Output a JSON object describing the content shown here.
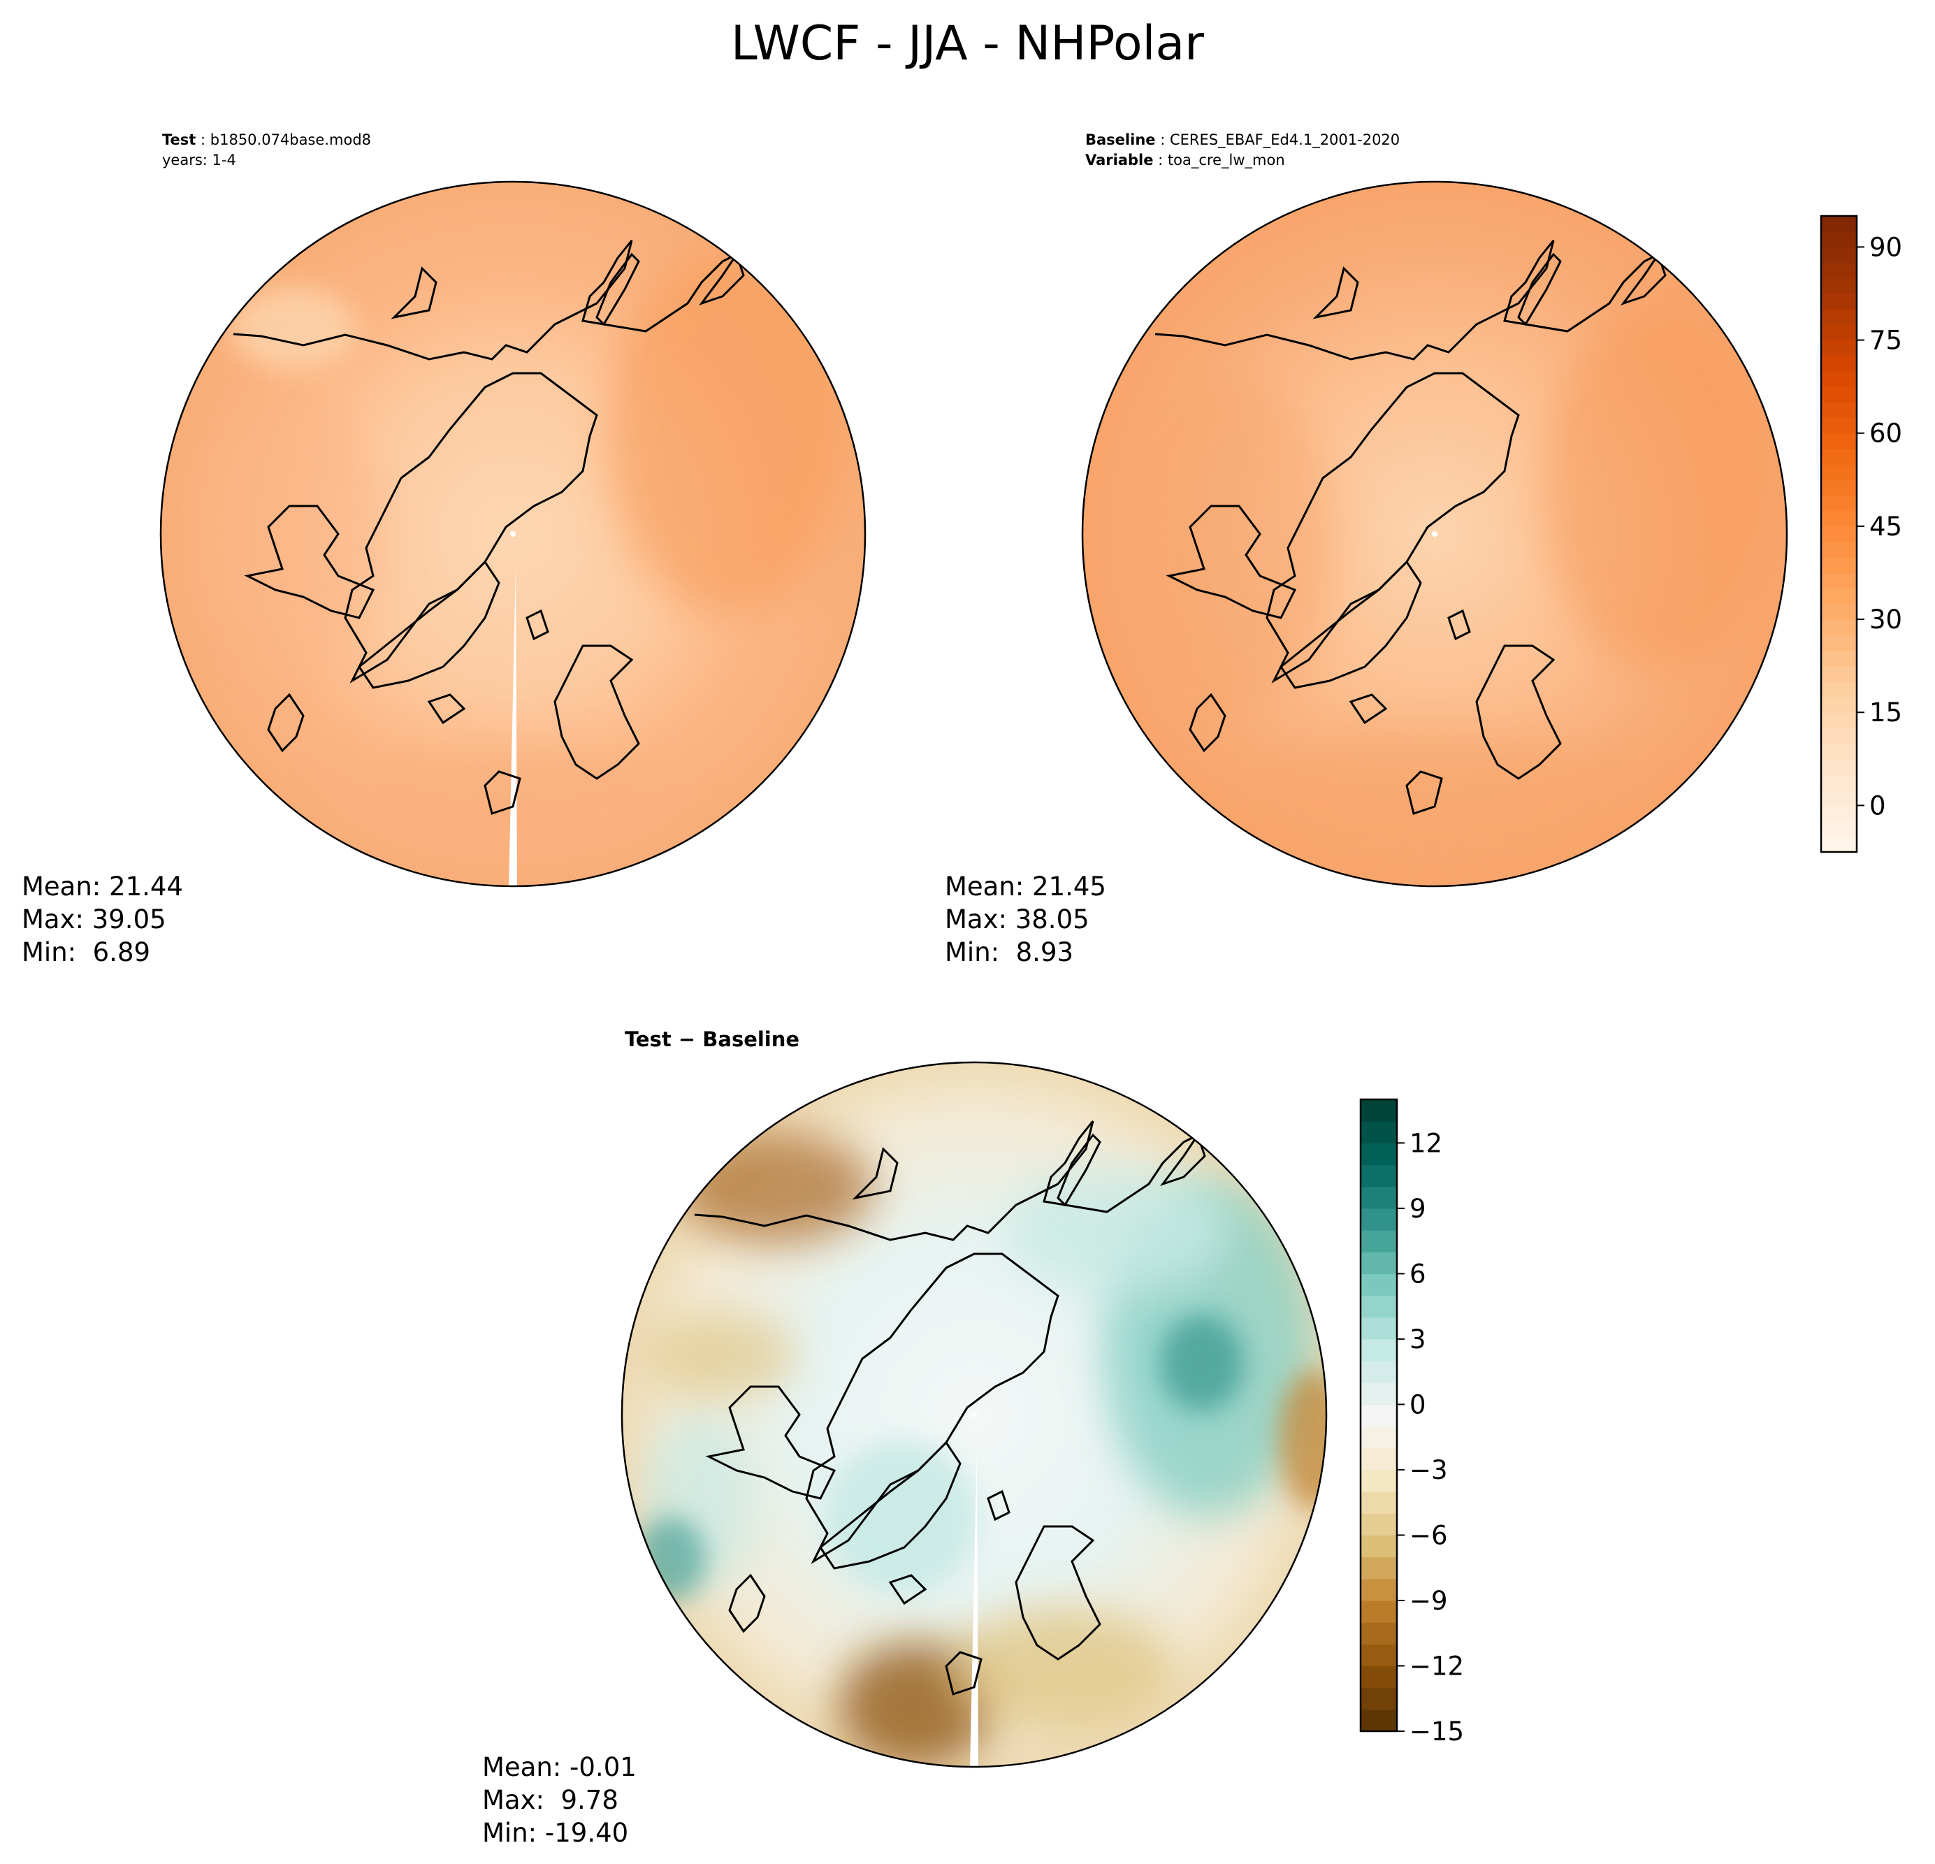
{
  "title": "LWCF - JJA - NHPolar",
  "panels": {
    "test": {
      "header_key_1": "Test",
      "header_val_1": "b1850.074base.mod8",
      "header_line_2": "years: 1-4",
      "stats_mean": "Mean: 21.44",
      "stats_max": "Max: 39.05",
      "stats_min": "Min:  6.89"
    },
    "baseline": {
      "header_key_1": "Baseline",
      "header_val_1": "CERES_EBAF_Ed4.1_2001-2020",
      "header_key_2": "Variable",
      "header_val_2": "toa_cre_lw_mon",
      "stats_mean": "Mean: 21.45",
      "stats_max": "Max: 38.05",
      "stats_min": "Min:  8.93"
    },
    "diff": {
      "title_left": "Test",
      "title_op": "−",
      "title_right": "Baseline",
      "stats_mean": "Mean: -0.01",
      "stats_max": "Max:  9.78",
      "stats_min": "Min: -19.40"
    }
  },
  "colorbars": {
    "top": {
      "colormap": "Oranges",
      "range": [
        -7.5,
        95
      ],
      "ticks": [
        {
          "v": 0,
          "label": "0"
        },
        {
          "v": 15,
          "label": "15"
        },
        {
          "v": 30,
          "label": "30"
        },
        {
          "v": 45,
          "label": "45"
        },
        {
          "v": 60,
          "label": "60"
        },
        {
          "v": 75,
          "label": "75"
        },
        {
          "v": 90,
          "label": "90"
        }
      ]
    },
    "diff": {
      "colormap": "BrBG",
      "range": [
        -15,
        14
      ],
      "ticks": [
        {
          "v": -15,
          "label": "−15"
        },
        {
          "v": -12,
          "label": "−12"
        },
        {
          "v": -9,
          "label": "−9"
        },
        {
          "v": -6,
          "label": "−6"
        },
        {
          "v": -3,
          "label": "−3"
        },
        {
          "v": 0,
          "label": "0"
        },
        {
          "v": 3,
          "label": "3"
        },
        {
          "v": 6,
          "label": "6"
        },
        {
          "v": 9,
          "label": "9"
        },
        {
          "v": 12,
          "label": "12"
        }
      ]
    }
  },
  "colors": {
    "oranges_low": "#fff5eb",
    "oranges_high": "#7f2704",
    "brbg_low": "#543005",
    "brbg_mid": "#f5f5f5",
    "brbg_high": "#003c30",
    "coast": "#000000"
  }
}
